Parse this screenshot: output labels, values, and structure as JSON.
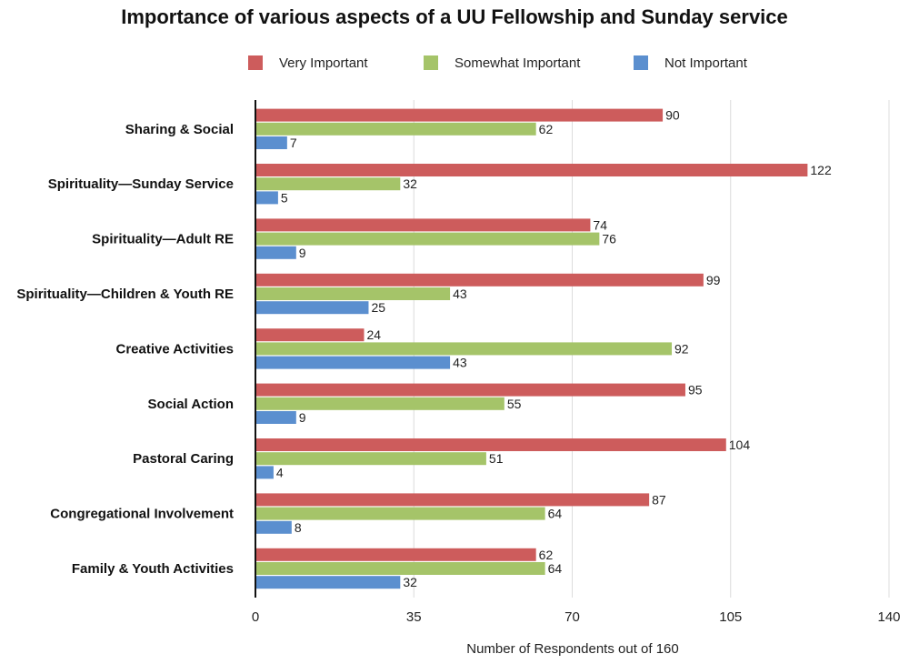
{
  "chart_data": {
    "type": "bar",
    "orientation": "horizontal",
    "title": "Importance of various aspects of a UU Fellowship and Sunday service",
    "xlabel": "Number of Respondents out of 160",
    "ylabel": "",
    "xlim": [
      0,
      140
    ],
    "xticks": [
      0,
      35,
      70,
      105,
      140
    ],
    "grid": true,
    "legend_position": "top",
    "categories": [
      "Sharing & Social",
      "Spirituality—Sunday Service",
      "Spirituality—Adult RE",
      "Spirituality—Children & Youth RE",
      "Creative Activities",
      "Social Action",
      "Pastoral Caring",
      "Congregational Involvement",
      "Family & Youth Activities"
    ],
    "series": [
      {
        "name": "Very Important",
        "color": "#cd5c5c",
        "values": [
          90,
          122,
          74,
          99,
          24,
          95,
          104,
          87,
          62
        ]
      },
      {
        "name": "Somewhat Important",
        "color": "#a5c469",
        "values": [
          62,
          32,
          76,
          43,
          92,
          55,
          51,
          64,
          64
        ]
      },
      {
        "name": "Not Important",
        "color": "#5b8fcf",
        "values": [
          7,
          5,
          9,
          25,
          43,
          9,
          4,
          8,
          32
        ]
      }
    ]
  }
}
